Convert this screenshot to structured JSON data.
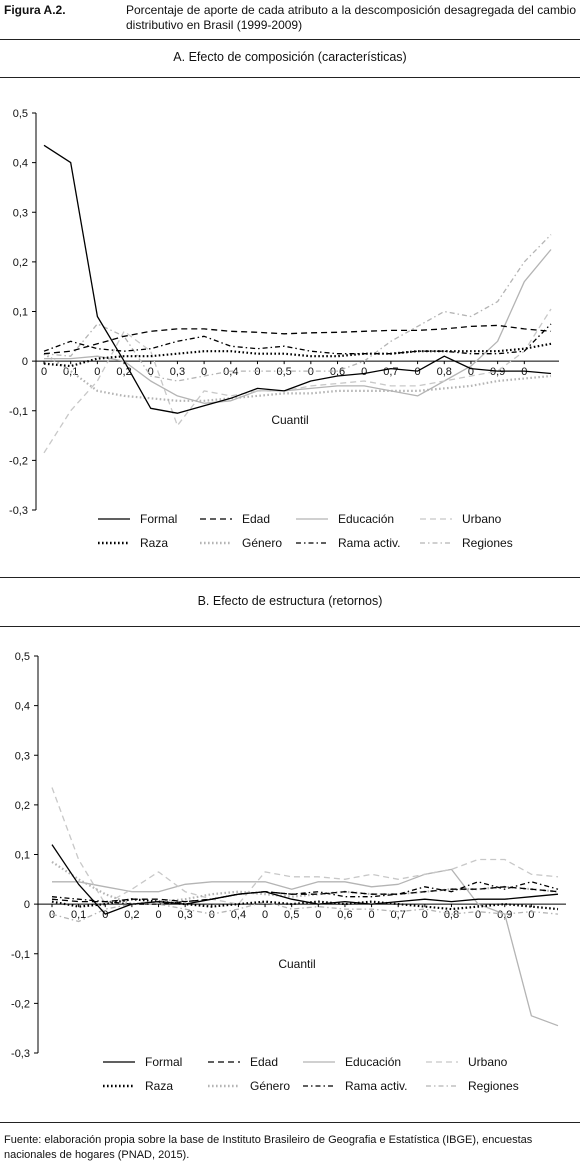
{
  "header": {
    "figure_label": "Figura A.2.",
    "title": "Porcentaje de aporte de cada atributo a la descomposición desagregada del cambio distributivo en Brasil (1999-2009)"
  },
  "footer": {
    "source": "Fuente: elaboración propia sobre la base de Instituto Brasileiro de Geografia e Estatística (IBGE), encuestas nacionales de hogares (PNAD, 2015)."
  },
  "colors": {
    "black": "#000000",
    "gray": "#b4b4b4",
    "light_gray": "#c8c8c8"
  },
  "series_styles": [
    {
      "name": "Formal",
      "color": "#000000",
      "dash": "none",
      "icon": "solid-black-line"
    },
    {
      "name": "Edad",
      "color": "#000000",
      "dash": "dashed",
      "icon": "dashed-black-line"
    },
    {
      "name": "Educación",
      "color": "#b4b4b4",
      "dash": "none",
      "icon": "solid-gray-line"
    },
    {
      "name": "Urbano",
      "color": "#c8c8c8",
      "dash": "dashed",
      "icon": "dashed-gray-line"
    },
    {
      "name": "Raza",
      "color": "#000000",
      "dash": "dotted",
      "icon": "dotted-black-line"
    },
    {
      "name": "Género",
      "color": "#b4b4b4",
      "dash": "dotted",
      "icon": "dotted-gray-line"
    },
    {
      "name": "Rama activ.",
      "color": "#000000",
      "dash": "dash-dot",
      "icon": "dashdot-black-line"
    },
    {
      "name": "Regiones",
      "color": "#b4b4b4",
      "dash": "dash-dot",
      "icon": "dashdot-gray-line"
    }
  ],
  "chart_data": [
    {
      "type": "line",
      "title": "A. Efecto de composición (características)",
      "xlabel": "Cuantil",
      "ylabel": "",
      "ylim": [
        -0.3,
        0.5
      ],
      "yticks": [
        "0,5",
        "0,4",
        "0,3",
        "0,2",
        "0,1",
        "0",
        "-0,1",
        "-0,2",
        "-0,3"
      ],
      "x": [
        0.0,
        0.05,
        0.1,
        0.15,
        0.2,
        0.25,
        0.3,
        0.35,
        0.4,
        0.45,
        0.5,
        0.55,
        0.6,
        0.65,
        0.7,
        0.75,
        0.8,
        0.85,
        0.9,
        0.95
      ],
      "xticks": [
        "0",
        "0,1",
        "0",
        "0,2",
        "0",
        "0,3",
        "0",
        "0,4",
        "0",
        "0,5",
        "0",
        "0,6",
        "0",
        "0,7",
        "0",
        "0,8",
        "0",
        "0,9",
        "0"
      ],
      "grid": false,
      "legend": "bottom",
      "series": [
        {
          "name": "Formal",
          "values": [
            0.435,
            0.4,
            0.09,
            0.0,
            -0.095,
            -0.105,
            -0.09,
            -0.075,
            -0.055,
            -0.06,
            -0.04,
            -0.03,
            -0.025,
            -0.015,
            -0.02,
            0.01,
            -0.015,
            -0.02,
            -0.02,
            -0.025
          ]
        },
        {
          "name": "Edad",
          "values": [
            0.015,
            0.02,
            0.035,
            0.05,
            0.06,
            0.065,
            0.065,
            0.06,
            0.058,
            0.055,
            0.057,
            0.058,
            0.06,
            0.062,
            0.062,
            0.065,
            0.07,
            0.072,
            0.065,
            0.06
          ]
        },
        {
          "name": "Educación",
          "values": [
            0.005,
            0.005,
            0.01,
            0.0,
            -0.04,
            -0.07,
            -0.085,
            -0.08,
            -0.06,
            -0.06,
            -0.055,
            -0.05,
            -0.05,
            -0.06,
            -0.07,
            -0.04,
            -0.01,
            0.04,
            0.16,
            0.225
          ]
        },
        {
          "name": "Urbano",
          "values": [
            -0.185,
            -0.1,
            -0.04,
            0.06,
            0.02,
            -0.13,
            -0.06,
            -0.07,
            -0.06,
            -0.06,
            -0.05,
            -0.045,
            -0.04,
            -0.05,
            -0.05,
            -0.04,
            -0.03,
            -0.02,
            0.02,
            0.105
          ]
        },
        {
          "name": "Raza",
          "values": [
            -0.005,
            -0.01,
            0.005,
            0.01,
            0.01,
            0.015,
            0.02,
            0.02,
            0.015,
            0.015,
            0.01,
            0.01,
            0.015,
            0.015,
            0.02,
            0.02,
            0.02,
            0.02,
            0.025,
            0.035
          ]
        },
        {
          "name": "Género",
          "values": [
            0.015,
            -0.02,
            -0.06,
            -0.07,
            -0.075,
            -0.08,
            -0.08,
            -0.075,
            -0.07,
            -0.065,
            -0.065,
            -0.06,
            -0.06,
            -0.06,
            -0.06,
            -0.055,
            -0.05,
            -0.04,
            -0.035,
            -0.03
          ]
        },
        {
          "name": "Rama activ.",
          "values": [
            0.02,
            0.04,
            0.025,
            0.02,
            0.025,
            0.04,
            0.05,
            0.03,
            0.025,
            0.03,
            0.02,
            0.015,
            0.015,
            0.015,
            0.02,
            0.02,
            0.015,
            0.015,
            0.02,
            0.075
          ]
        },
        {
          "name": "Regiones",
          "values": [
            0.015,
            0.01,
            0.075,
            0.05,
            -0.03,
            -0.04,
            -0.03,
            -0.02,
            -0.02,
            -0.02,
            -0.02,
            -0.02,
            0.0,
            0.04,
            0.07,
            0.1,
            0.09,
            0.12,
            0.2,
            0.255
          ]
        }
      ]
    },
    {
      "type": "line",
      "title": "B. Efecto de estructura (retornos)",
      "xlabel": "Cuantil",
      "ylabel": "",
      "ylim": [
        -0.3,
        0.5
      ],
      "yticks": [
        "0,5",
        "0,4",
        "0,3",
        "0,2",
        "0,1",
        "0",
        "-0,1",
        "-0,2",
        "-0,3"
      ],
      "x": [
        0.0,
        0.05,
        0.1,
        0.15,
        0.2,
        0.25,
        0.3,
        0.35,
        0.4,
        0.45,
        0.5,
        0.55,
        0.6,
        0.65,
        0.7,
        0.75,
        0.8,
        0.85,
        0.9,
        0.95
      ],
      "xticks": [
        "0",
        "0,1",
        "0",
        "0,2",
        "0",
        "0,3",
        "0",
        "0,4",
        "0",
        "0,5",
        "0",
        "0,6",
        "0",
        "0,7",
        "0",
        "0,8",
        "0",
        "0,9",
        "0"
      ],
      "grid": false,
      "legend": "bottom",
      "series": [
        {
          "name": "Formal",
          "values": [
            0.12,
            0.04,
            -0.02,
            0.0,
            0.005,
            0.0,
            0.01,
            0.02,
            0.025,
            0.01,
            0.0,
            0.005,
            0.0,
            0.005,
            0.01,
            0.005,
            0.01,
            0.01,
            0.015,
            0.02
          ]
        },
        {
          "name": "Edad",
          "values": [
            0.01,
            0.005,
            0.005,
            0.01,
            0.01,
            0.005,
            0.01,
            0.02,
            0.025,
            0.02,
            0.02,
            0.025,
            0.02,
            0.02,
            0.025,
            0.03,
            0.03,
            0.035,
            0.03,
            0.025
          ]
        },
        {
          "name": "Educación",
          "values": [
            0.045,
            0.045,
            0.035,
            0.025,
            0.025,
            0.04,
            0.045,
            0.045,
            0.045,
            0.03,
            0.045,
            0.045,
            0.035,
            0.04,
            0.06,
            0.07,
            0.0,
            -0.02,
            -0.225,
            -0.245
          ]
        },
        {
          "name": "Urbano",
          "values": [
            0.235,
            0.09,
            0.0,
            0.03,
            0.065,
            0.025,
            0.01,
            0.0,
            0.065,
            0.055,
            0.055,
            0.05,
            0.06,
            0.05,
            0.06,
            0.07,
            0.09,
            0.09,
            0.06,
            0.055
          ]
        },
        {
          "name": "Raza",
          "values": [
            0.005,
            -0.005,
            0.0,
            0.01,
            0.005,
            0.0,
            -0.005,
            0.0,
            0.005,
            0.0,
            0.005,
            0.0,
            0.005,
            0.0,
            -0.005,
            -0.01,
            -0.005,
            0.0,
            -0.005,
            -0.01
          ]
        },
        {
          "name": "Género",
          "values": [
            0.085,
            0.05,
            0.02,
            0.0,
            0.005,
            0.01,
            0.02,
            0.025,
            0.02,
            0.015,
            0.02,
            0.025,
            0.02,
            0.02,
            0.025,
            0.03,
            0.03,
            0.035,
            0.03,
            0.025
          ]
        },
        {
          "name": "Rama activ.",
          "values": [
            0.015,
            0.01,
            0.005,
            0.0,
            0.0,
            0.005,
            0.01,
            0.02,
            0.025,
            0.02,
            0.025,
            0.015,
            0.015,
            0.02,
            0.035,
            0.025,
            0.045,
            0.03,
            0.045,
            0.03
          ]
        },
        {
          "name": "Regiones",
          "values": [
            -0.02,
            -0.035,
            -0.01,
            0.0,
            0.0,
            -0.01,
            -0.02,
            -0.01,
            0.005,
            -0.01,
            -0.005,
            -0.01,
            -0.01,
            -0.015,
            -0.01,
            -0.02,
            -0.015,
            -0.02,
            -0.015,
            -0.02
          ]
        }
      ]
    }
  ]
}
